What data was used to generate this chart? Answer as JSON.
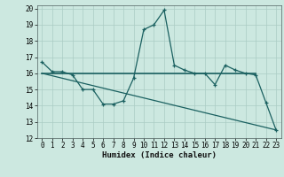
{
  "xlabel": "Humidex (Indice chaleur)",
  "xlim": [
    -0.5,
    23.5
  ],
  "ylim": [
    12,
    20.2
  ],
  "yticks": [
    12,
    13,
    14,
    15,
    16,
    17,
    18,
    19,
    20
  ],
  "xticks": [
    0,
    1,
    2,
    3,
    4,
    5,
    6,
    7,
    8,
    9,
    10,
    11,
    12,
    13,
    14,
    15,
    16,
    17,
    18,
    19,
    20,
    21,
    22,
    23
  ],
  "background_color": "#cce8e0",
  "grid_color": "#aaccc4",
  "line_color": "#1a6060",
  "line1_x": [
    0,
    1,
    2,
    3,
    4,
    5,
    6,
    7,
    8,
    9,
    10,
    11,
    12,
    13,
    14,
    15,
    16,
    17,
    18,
    19,
    20,
    21,
    22,
    23
  ],
  "line1_y": [
    16.7,
    16.1,
    16.1,
    15.9,
    15.0,
    15.0,
    14.1,
    14.1,
    14.3,
    15.7,
    18.7,
    19.0,
    19.9,
    16.5,
    16.2,
    16.0,
    16.0,
    15.3,
    16.5,
    16.2,
    16.0,
    15.9,
    14.2,
    12.5
  ],
  "line2_x": [
    0,
    21
  ],
  "line2_y": [
    16.0,
    16.0
  ],
  "line3_x": [
    0,
    23
  ],
  "line3_y": [
    16.0,
    12.5
  ],
  "tick_fontsize": 5.5,
  "label_fontsize": 6.5
}
